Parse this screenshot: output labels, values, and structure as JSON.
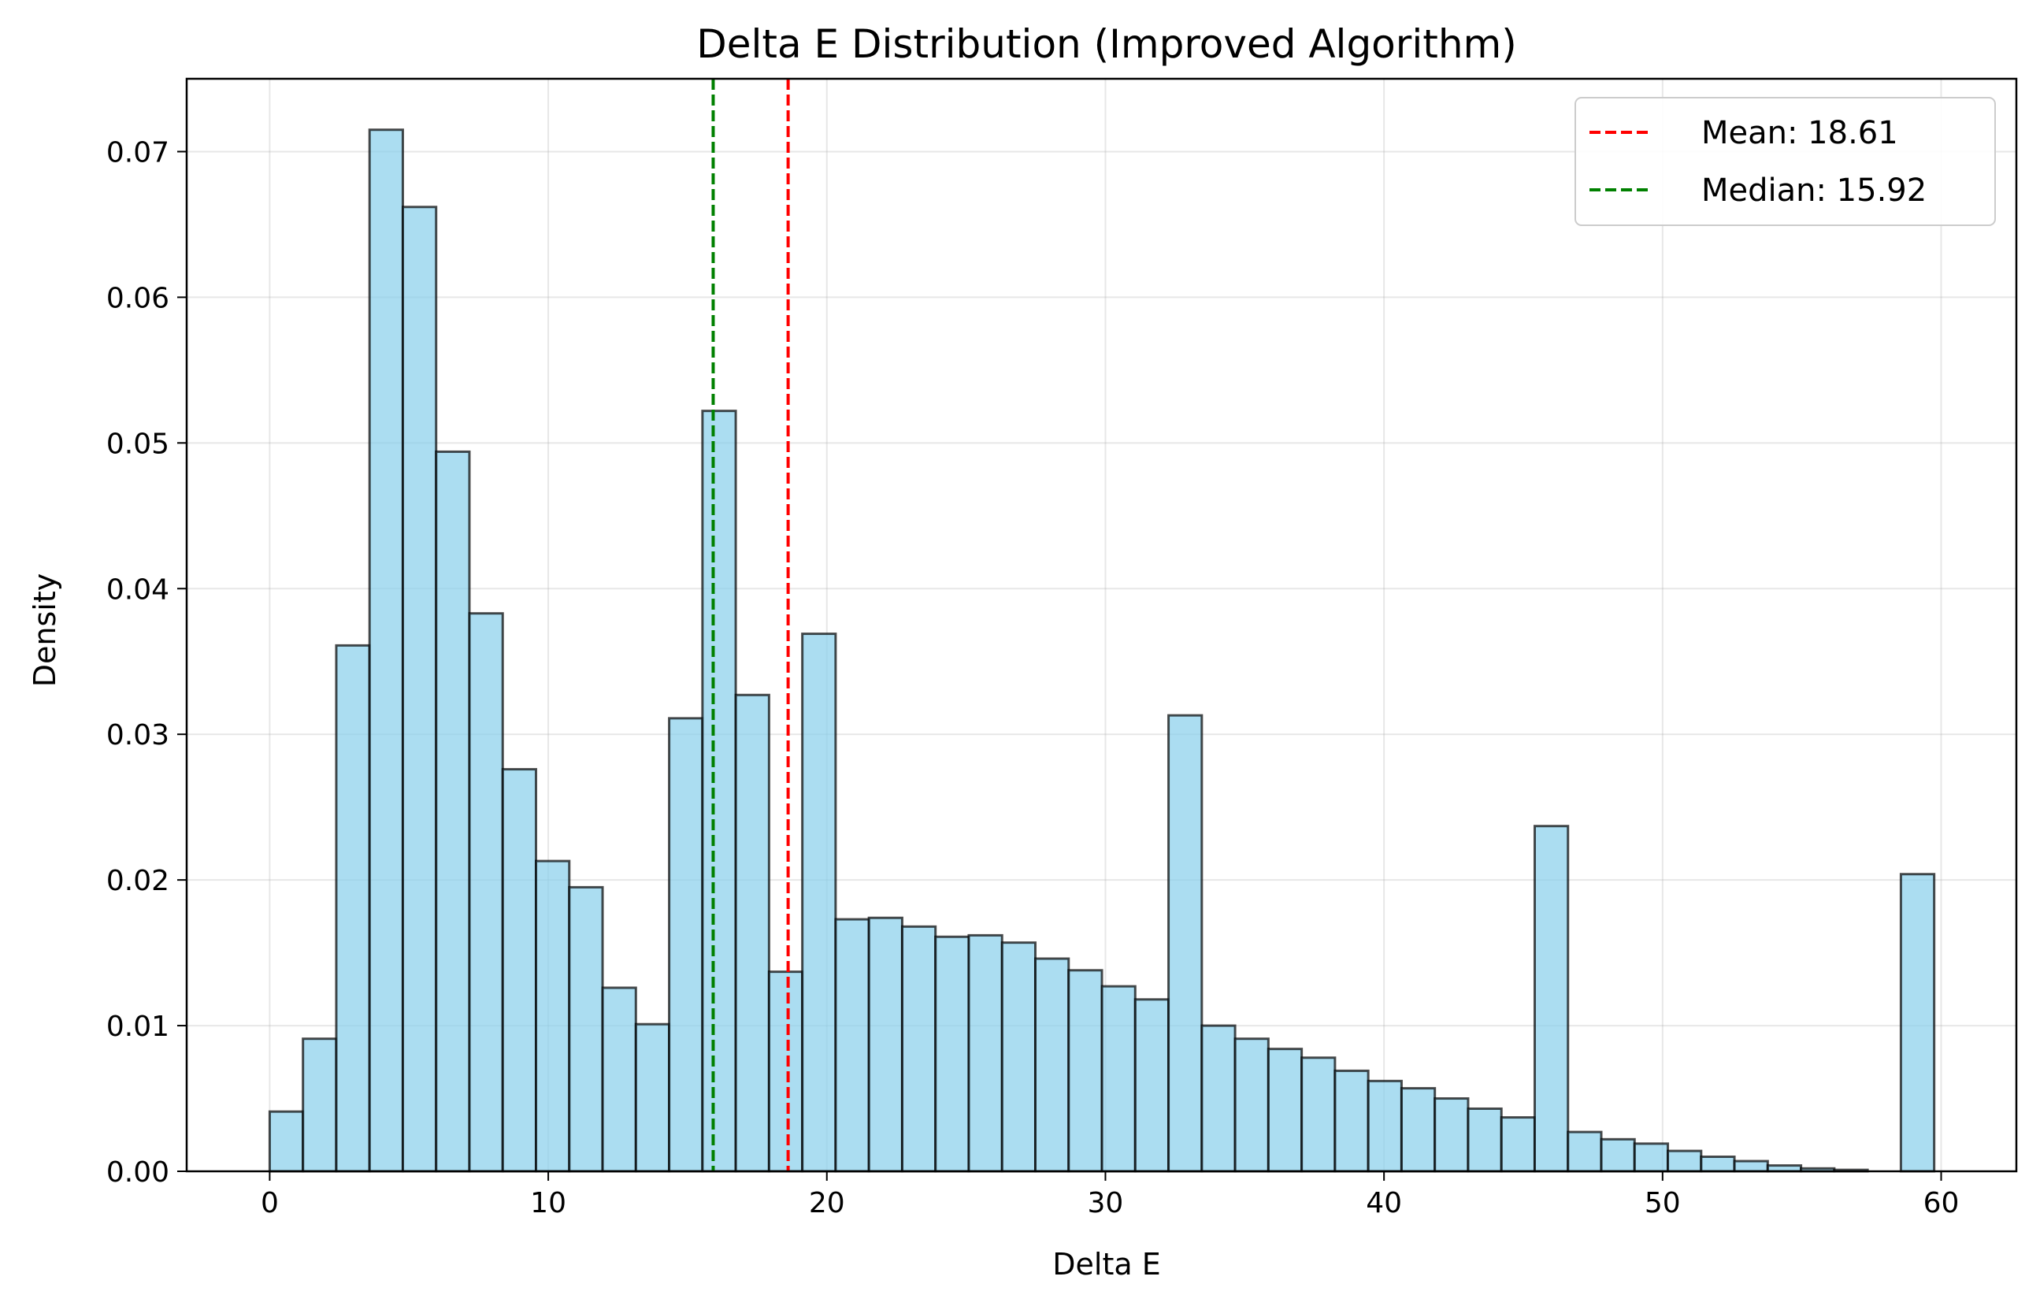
{
  "chart_data": {
    "type": "bar",
    "title": "Delta E Distribution (Improved Algorithm)",
    "xlabel": "Delta E",
    "ylabel": "Density",
    "xlim": [
      -2.98,
      62.7
    ],
    "ylim": [
      0,
      0.075
    ],
    "xticks": [
      0,
      10,
      20,
      30,
      40,
      50,
      60
    ],
    "yticks": [
      0.0,
      0.01,
      0.02,
      0.03,
      0.04,
      0.05,
      0.06,
      0.07
    ],
    "grid": true,
    "bin_start": 0,
    "bin_width": 1.195,
    "densities": [
      0.0041,
      0.0091,
      0.0361,
      0.0715,
      0.0662,
      0.0494,
      0.0383,
      0.0276,
      0.0213,
      0.0195,
      0.0126,
      0.0101,
      0.0311,
      0.0522,
      0.0327,
      0.0137,
      0.0369,
      0.0173,
      0.0174,
      0.0168,
      0.0161,
      0.0162,
      0.0157,
      0.0146,
      0.0138,
      0.0127,
      0.0118,
      0.0313,
      0.01,
      0.0091,
      0.0084,
      0.0078,
      0.0069,
      0.0062,
      0.0057,
      0.005,
      0.0043,
      0.0037,
      0.0237,
      0.0027,
      0.0022,
      0.0019,
      0.0014,
      0.001,
      0.0007,
      0.0004,
      0.0002,
      0.0001,
      0.0,
      0.0204
    ],
    "bar_color": "#87CEEB",
    "bar_edge_color": "#000000",
    "lines": [
      {
        "label": "Mean: 18.61",
        "x": 18.61,
        "color": "#ff0000",
        "style": "dashed"
      },
      {
        "label": "Median: 15.92",
        "x": 15.92,
        "color": "#008000",
        "style": "dashed"
      }
    ],
    "legend_position": "top-right"
  }
}
